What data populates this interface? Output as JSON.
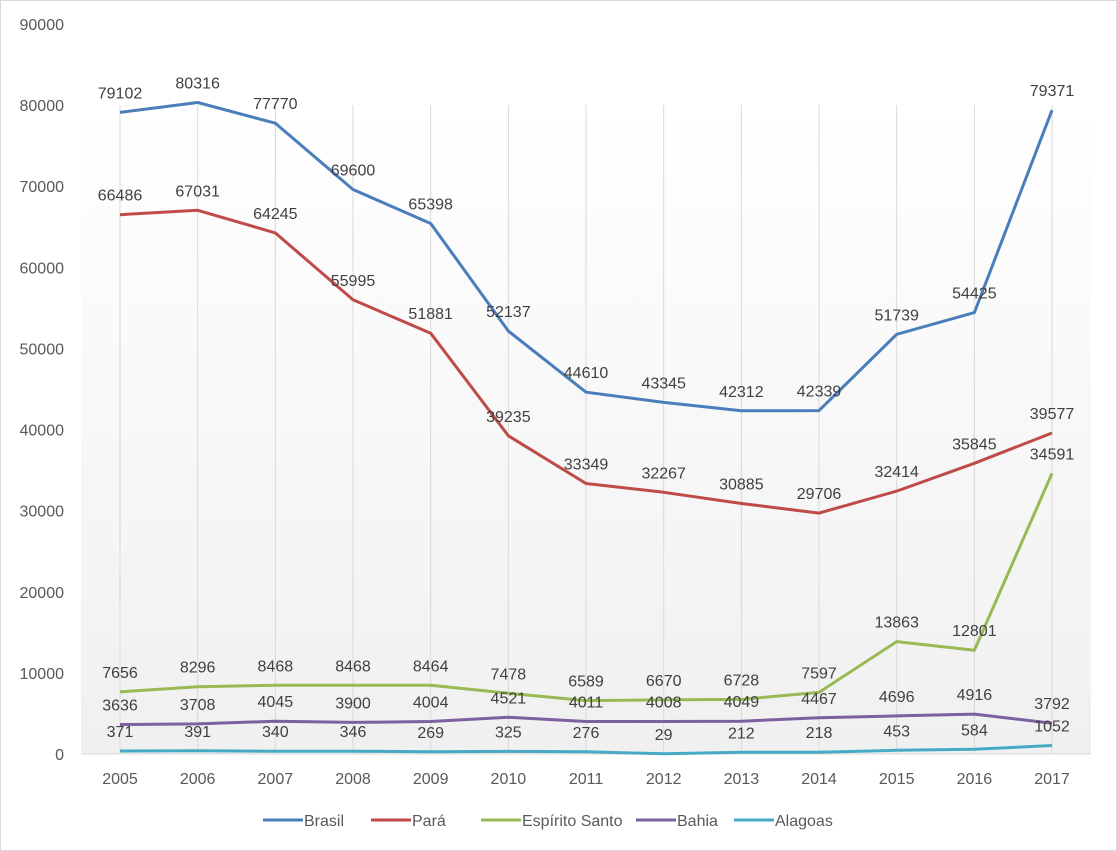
{
  "chart_data": {
    "type": "line",
    "title": "",
    "xlabel": "",
    "ylabel": "",
    "x": [
      "2005",
      "2006",
      "2007",
      "2008",
      "2009",
      "2010",
      "2011",
      "2012",
      "2013",
      "2014",
      "2015",
      "2016",
      "2017"
    ],
    "ylim": [
      0,
      90000
    ],
    "yticks": [
      "0",
      "10000",
      "20000",
      "30000",
      "40000",
      "50000",
      "60000",
      "70000",
      "80000",
      "90000"
    ],
    "grid": "vertical",
    "legend_position": "bottom",
    "series": [
      {
        "name": "Brasil",
        "color": "#4a7ebb",
        "values": [
          79102,
          80316,
          77770,
          69600,
          65398,
          52137,
          44610,
          43345,
          42312,
          42339,
          51739,
          54425,
          79371
        ]
      },
      {
        "name": "Pará",
        "color": "#be4b48",
        "values": [
          66486,
          67031,
          64245,
          55995,
          51881,
          39235,
          33349,
          32267,
          30885,
          29706,
          32414,
          35845,
          39577
        ]
      },
      {
        "name": "Espírito Santo",
        "color": "#98b954",
        "values": [
          7656,
          8296,
          8468,
          8468,
          8464,
          7478,
          6589,
          6670,
          6728,
          7597,
          13863,
          12801,
          34591
        ]
      },
      {
        "name": "Bahia",
        "color": "#7d60a0",
        "values": [
          3636,
          3708,
          4045,
          3900,
          4004,
          4521,
          4011,
          4008,
          4049,
          4467,
          4696,
          4916,
          3792
        ]
      },
      {
        "name": "Alagoas",
        "color": "#46aac5",
        "values": [
          371,
          391,
          340,
          346,
          269,
          325,
          276,
          29,
          212,
          218,
          453,
          584,
          1052
        ]
      }
    ]
  }
}
